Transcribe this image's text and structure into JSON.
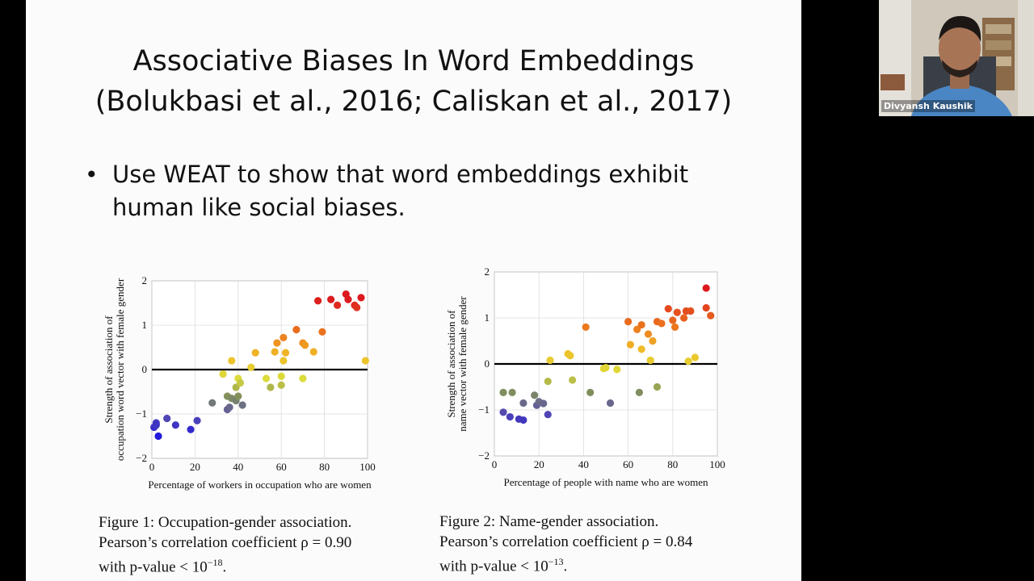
{
  "slide": {
    "title_line1": "Associative Biases In Word Embeddings",
    "title_line2": "(Bolukbasi et al., 2016; Caliskan et al., 2017)",
    "bullet_symbol": "•",
    "bullet_line1": "Use WEAT to show that word embeddings exhibit",
    "bullet_line2": "human like social biases.",
    "figure1": {
      "caption_line1": "Figure 1:  Occupation-gender association.",
      "caption_line2": "Pearson’s correlation coefficient ρ = 0.90",
      "caption_line3_prefix": "with p-value < 10",
      "caption_line3_exp": "−18",
      "caption_line3_suffix": "."
    },
    "figure2": {
      "caption_line1": "Figure 2:            Name-gender association.",
      "caption_line2": "Pearson’s correlation coefficient ρ = 0.84",
      "caption_line3_prefix": "with p-value < 10",
      "caption_line3_exp": "−13",
      "caption_line3_suffix": "."
    }
  },
  "video": {
    "participant_name": "Divyansh Kaushik"
  },
  "chart_data": [
    {
      "type": "scatter",
      "xlabel": "Percentage of workers in occupation who are women",
      "ylabel": "Strength of association of\noccupation word vector with female gender",
      "xlim": [
        0,
        100
      ],
      "ylim": [
        -2,
        2
      ],
      "xticks": [
        0,
        20,
        40,
        60,
        80,
        100
      ],
      "yticks": [
        2,
        1,
        0,
        -1,
        -2
      ],
      "grid": true,
      "color_by": "y",
      "points": [
        [
          1,
          -1.3
        ],
        [
          2,
          -1.2
        ],
        [
          2,
          -1.25
        ],
        [
          3,
          -1.5
        ],
        [
          7,
          -1.1
        ],
        [
          11,
          -1.25
        ],
        [
          18,
          -1.35
        ],
        [
          21,
          -1.15
        ],
        [
          28,
          -0.75
        ],
        [
          35,
          -0.9
        ],
        [
          35,
          -0.6
        ],
        [
          36,
          -0.85
        ],
        [
          37,
          -0.65
        ],
        [
          39,
          -0.4
        ],
        [
          39,
          -0.7
        ],
        [
          40,
          -0.6
        ],
        [
          42,
          -0.8
        ],
        [
          40,
          -0.2
        ],
        [
          41,
          -0.3
        ],
        [
          33,
          -0.1
        ],
        [
          37,
          0.2
        ],
        [
          46,
          0.05
        ],
        [
          48,
          0.38
        ],
        [
          53,
          -0.2
        ],
        [
          55,
          -0.4
        ],
        [
          57,
          0.4
        ],
        [
          58,
          0.6
        ],
        [
          60,
          -0.35
        ],
        [
          60,
          -0.15
        ],
        [
          61,
          0.72
        ],
        [
          61,
          0.2
        ],
        [
          62,
          0.38
        ],
        [
          67,
          0.9
        ],
        [
          70,
          0.6
        ],
        [
          71,
          0.55
        ],
        [
          70,
          -0.2
        ],
        [
          75,
          0.4
        ],
        [
          79,
          0.85
        ],
        [
          99,
          0.2
        ],
        [
          77,
          1.55
        ],
        [
          83,
          1.58
        ],
        [
          86,
          1.45
        ],
        [
          90,
          1.7
        ],
        [
          91,
          1.58
        ],
        [
          94,
          1.45
        ],
        [
          95,
          1.4
        ],
        [
          97,
          1.62
        ]
      ]
    },
    {
      "type": "scatter",
      "xlabel": "Percentage of people with name who are women",
      "ylabel": "Strength of association of\nname vector with female gender",
      "xlim": [
        0,
        100
      ],
      "ylim": [
        -2,
        2
      ],
      "xticks": [
        0,
        20,
        40,
        60,
        80,
        100
      ],
      "yticks": [
        2,
        1,
        0,
        -1,
        -2
      ],
      "grid": true,
      "color_by": "y",
      "points": [
        [
          4,
          -1.05
        ],
        [
          7,
          -1.15
        ],
        [
          11,
          -1.2
        ],
        [
          13,
          -1.22
        ],
        [
          24,
          -1.1
        ],
        [
          4,
          -0.62
        ],
        [
          8,
          -0.62
        ],
        [
          13,
          -0.85
        ],
        [
          18,
          -0.68
        ],
        [
          19,
          -0.9
        ],
        [
          20,
          -0.82
        ],
        [
          22,
          -0.86
        ],
        [
          43,
          -0.62
        ],
        [
          52,
          -0.85
        ],
        [
          65,
          -0.62
        ],
        [
          73,
          -0.5
        ],
        [
          24,
          -0.38
        ],
        [
          25,
          0.08
        ],
        [
          33,
          0.22
        ],
        [
          34,
          0.18
        ],
        [
          35,
          -0.35
        ],
        [
          49,
          -0.1
        ],
        [
          50,
          -0.08
        ],
        [
          55,
          -0.12
        ],
        [
          70,
          0.08
        ],
        [
          87,
          0.06
        ],
        [
          90,
          0.14
        ],
        [
          41,
          0.8
        ],
        [
          61,
          0.42
        ],
        [
          60,
          0.92
        ],
        [
          64,
          0.75
        ],
        [
          66,
          0.32
        ],
        [
          66,
          0.85
        ],
        [
          69,
          0.65
        ],
        [
          71,
          0.5
        ],
        [
          73,
          0.92
        ],
        [
          75,
          0.88
        ],
        [
          78,
          1.2
        ],
        [
          80,
          0.95
        ],
        [
          81,
          0.8
        ],
        [
          82,
          1.12
        ],
        [
          85,
          1.0
        ],
        [
          86,
          1.15
        ],
        [
          88,
          1.15
        ],
        [
          95,
          1.22
        ],
        [
          97,
          1.05
        ],
        [
          95,
          1.65
        ]
      ]
    }
  ]
}
